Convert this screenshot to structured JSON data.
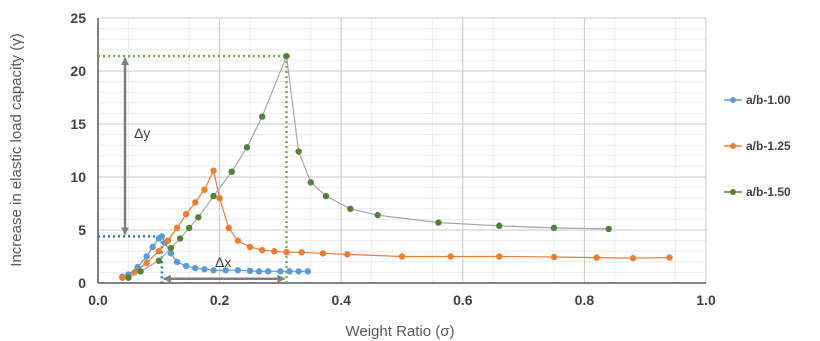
{
  "chart_data": {
    "type": "line",
    "xlabel": "Weight Ratio (σ)",
    "ylabel": "Increase in elastic load capacity (γ)",
    "xlim": [
      0,
      1.0
    ],
    "ylim": [
      0,
      25
    ],
    "x_ticks": [
      "0.0",
      "0.2",
      "0.4",
      "0.6",
      "0.8",
      "1.0"
    ],
    "y_ticks": [
      "0",
      "5",
      "10",
      "15",
      "20",
      "25"
    ],
    "grid": true,
    "legend_position": "right",
    "series": [
      {
        "name": "a/b-1.00",
        "color": "#5B9BD5",
        "x": [
          0.04,
          0.05,
          0.065,
          0.08,
          0.09,
          0.1,
          0.105,
          0.11,
          0.12,
          0.13,
          0.145,
          0.16,
          0.175,
          0.19,
          0.21,
          0.23,
          0.25,
          0.265,
          0.28,
          0.3,
          0.315,
          0.33,
          0.345
        ],
        "y": [
          0.6,
          0.8,
          1.5,
          2.5,
          3.4,
          4.2,
          4.4,
          3.8,
          2.8,
          2.0,
          1.6,
          1.4,
          1.3,
          1.2,
          1.2,
          1.2,
          1.15,
          1.1,
          1.1,
          1.1,
          1.1,
          1.1,
          1.1
        ]
      },
      {
        "name": "a/b-1.25",
        "color": "#ED7D31",
        "x": [
          0.04,
          0.06,
          0.08,
          0.1,
          0.115,
          0.13,
          0.145,
          0.16,
          0.175,
          0.19,
          0.2,
          0.215,
          0.23,
          0.25,
          0.27,
          0.29,
          0.31,
          0.335,
          0.37,
          0.41,
          0.5,
          0.58,
          0.66,
          0.75,
          0.82,
          0.88,
          0.94
        ],
        "y": [
          0.5,
          1.0,
          1.9,
          3.0,
          4.0,
          5.2,
          6.5,
          7.6,
          8.8,
          10.6,
          8.0,
          5.2,
          4.0,
          3.4,
          3.1,
          3.0,
          2.9,
          2.9,
          2.8,
          2.7,
          2.5,
          2.5,
          2.5,
          2.45,
          2.4,
          2.35,
          2.4
        ]
      },
      {
        "name": "a/b-1.50",
        "color": "#548235",
        "x": [
          0.05,
          0.07,
          0.1,
          0.12,
          0.135,
          0.15,
          0.165,
          0.19,
          0.22,
          0.245,
          0.27,
          0.31,
          0.33,
          0.35,
          0.375,
          0.415,
          0.46,
          0.56,
          0.66,
          0.75,
          0.84
        ],
        "y": [
          0.5,
          1.1,
          2.1,
          3.3,
          4.2,
          5.2,
          6.2,
          8.2,
          10.5,
          12.8,
          15.7,
          21.4,
          12.4,
          9.5,
          8.2,
          7.0,
          6.4,
          5.7,
          5.4,
          5.2,
          5.1
        ]
      }
    ],
    "annotations": {
      "dy_label": "Δy",
      "dx_label": "Δx"
    }
  }
}
